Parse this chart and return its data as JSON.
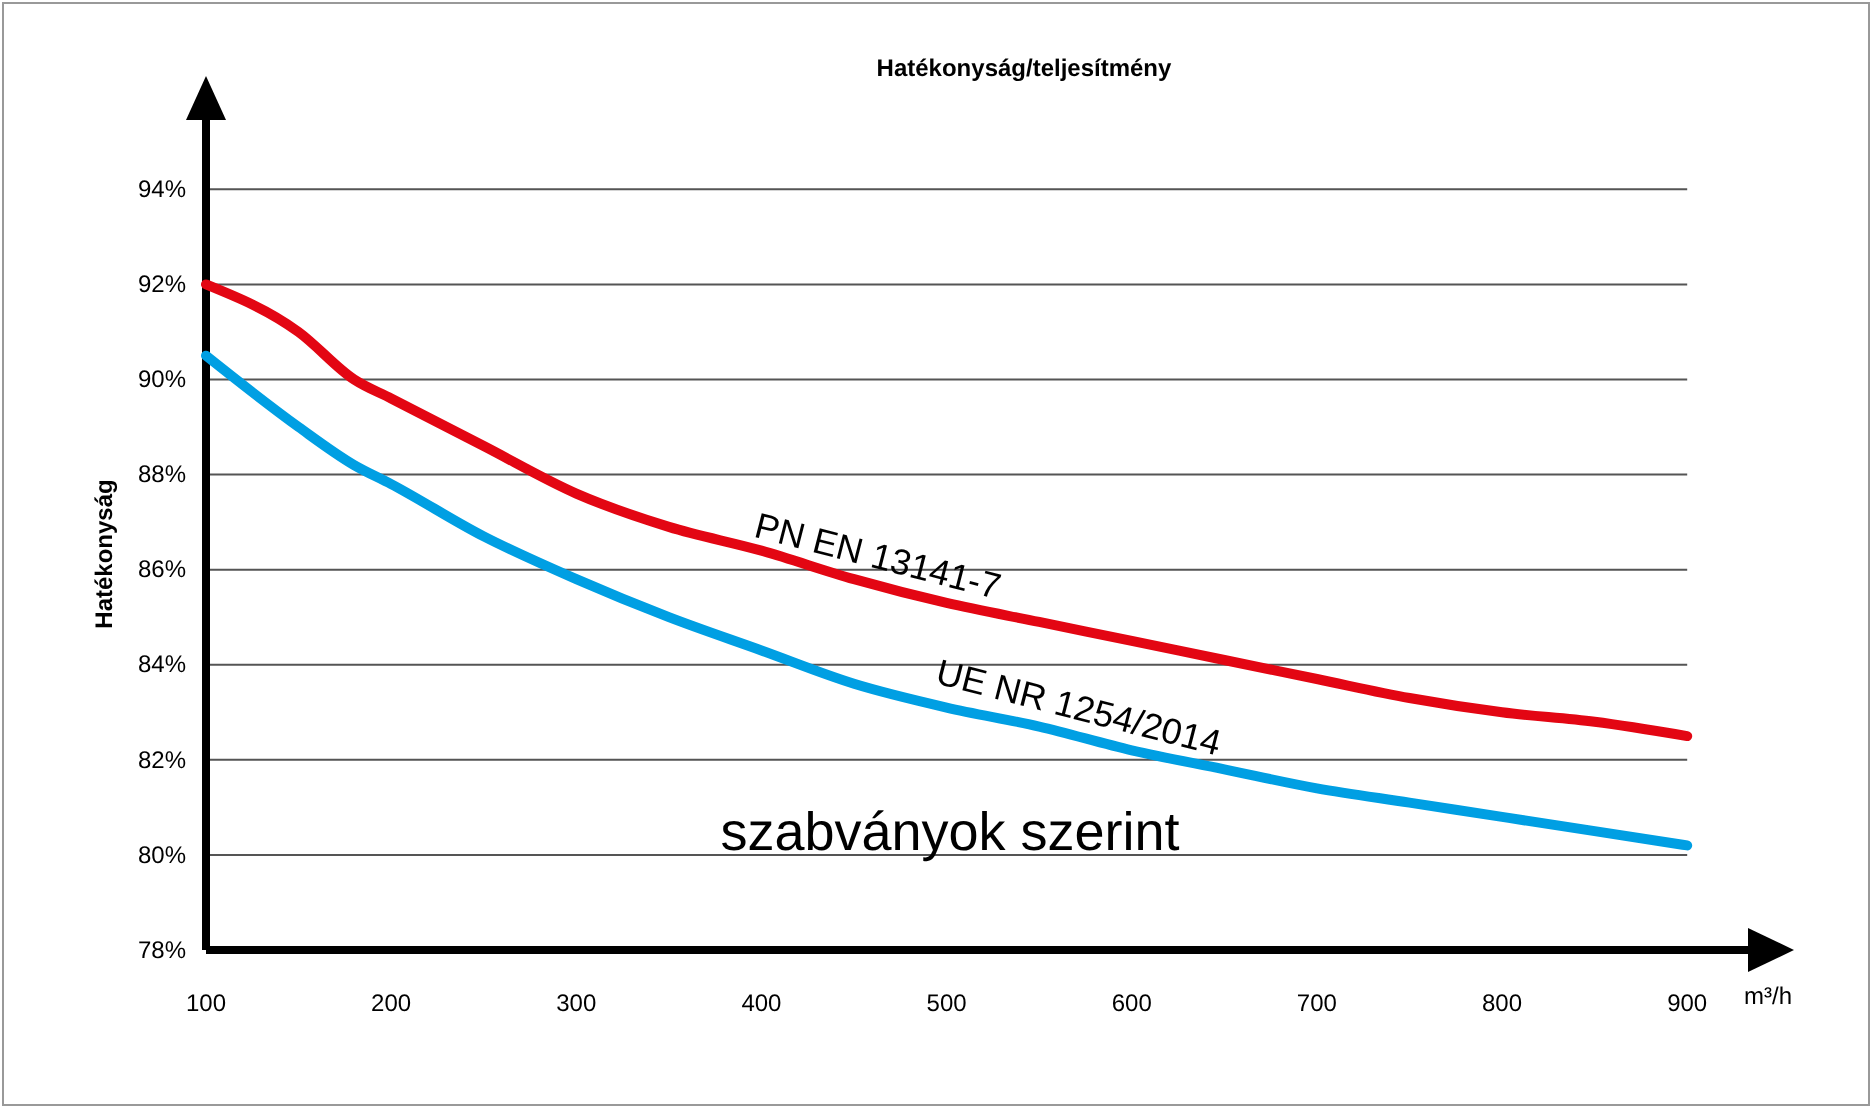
{
  "chart_data": {
    "type": "line",
    "title": "Hatékonyság/teljesítmény",
    "ylabel": "Hatékonyság",
    "xlabel": "m³/h",
    "annotations": [
      "szabványok szerint"
    ],
    "x": [
      100,
      150,
      180,
      200,
      250,
      300,
      350,
      400,
      450,
      500,
      550,
      600,
      650,
      700,
      750,
      800,
      850,
      900
    ],
    "series": [
      {
        "name": "PN EN 13141-7",
        "color": "#e30613",
        "values": [
          92.0,
          91.0,
          90.0,
          89.6,
          88.6,
          87.6,
          86.9,
          86.4,
          85.8,
          85.3,
          84.9,
          84.5,
          84.1,
          83.7,
          83.3,
          83.0,
          82.8,
          82.5
        ]
      },
      {
        "name": "UE NR 1254/2014",
        "color": "#009fe3",
        "values": [
          90.5,
          89.0,
          88.2,
          87.8,
          86.7,
          85.8,
          85.0,
          84.3,
          83.6,
          83.1,
          82.7,
          82.2,
          81.8,
          81.4,
          81.1,
          80.8,
          80.5,
          80.2
        ]
      }
    ],
    "xlim": [
      100,
      935
    ],
    "xticks": [
      100,
      200,
      300,
      400,
      500,
      600,
      700,
      800,
      900
    ],
    "ylim": [
      78,
      95.5
    ],
    "yticks": [
      {
        "value": 78,
        "label": "78%"
      },
      {
        "value": 80,
        "label": "80%"
      },
      {
        "value": 82,
        "label": "82%"
      },
      {
        "value": 84,
        "label": "84%"
      },
      {
        "value": 86,
        "label": "86%"
      },
      {
        "value": 88,
        "label": "88%"
      },
      {
        "value": 90,
        "label": "90%"
      },
      {
        "value": 92,
        "label": "92%"
      },
      {
        "value": 94,
        "label": "94%"
      }
    ],
    "grid": "y",
    "line_style": "solid",
    "marker": "none"
  }
}
